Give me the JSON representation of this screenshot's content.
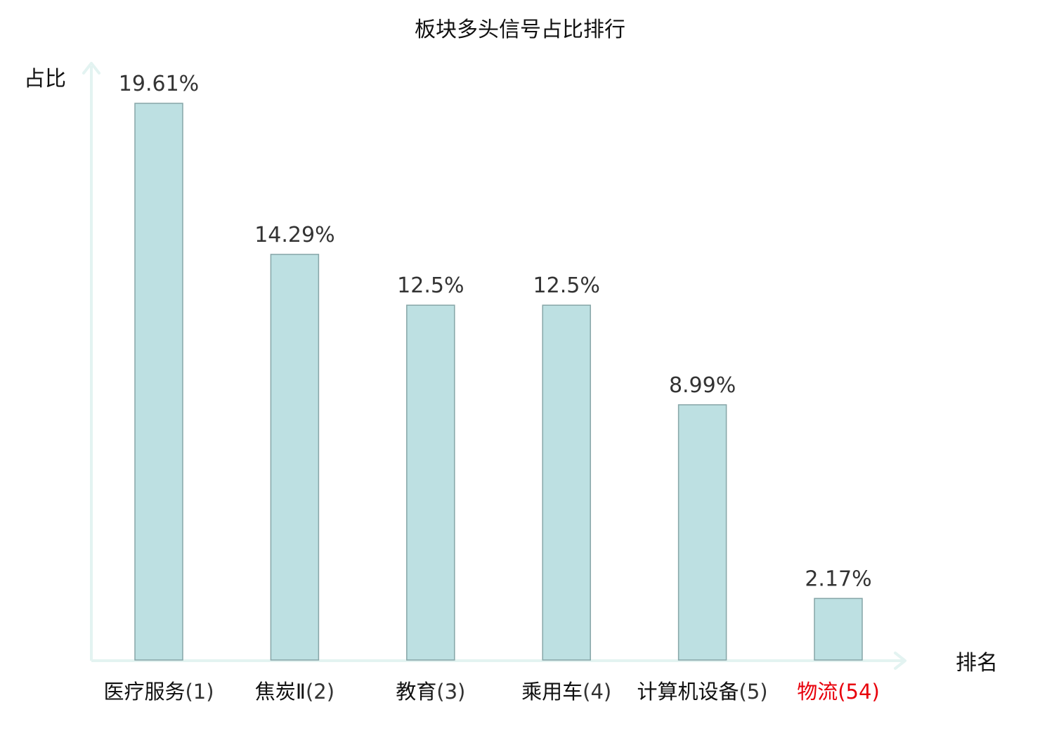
{
  "chart_data": {
    "type": "bar",
    "title": "板块多头信号占比排行",
    "ylabel": "占比",
    "xlabel": "排名",
    "unit": "%",
    "categories": [
      {
        "name": "医疗服务",
        "rank": "(1)"
      },
      {
        "name": "焦炭Ⅱ",
        "rank": "(2)"
      },
      {
        "name": "教育",
        "rank": "(3)"
      },
      {
        "name": "乘用车",
        "rank": "(4)"
      },
      {
        "name": "计算机设备",
        "rank": "(5)"
      },
      {
        "name": "物流",
        "rank": "(54)"
      }
    ],
    "values": [
      19.61,
      14.29,
      12.5,
      12.5,
      8.99,
      2.17
    ],
    "ylim": [
      0,
      19.61
    ],
    "grid": false,
    "highlight_index": 5,
    "colors": {
      "bar_fill": "#bde0e2",
      "bar_stroke": "#86a5a7",
      "axis": "#e3f3f1",
      "highlight": "#e8000b"
    }
  }
}
